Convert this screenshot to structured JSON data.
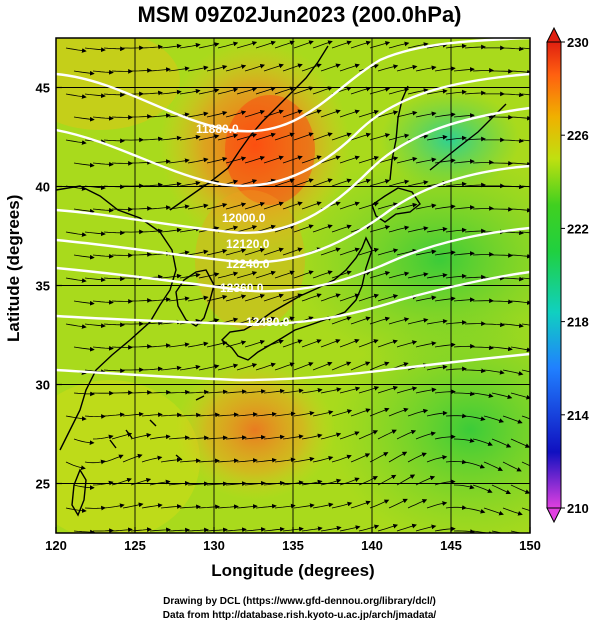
{
  "title": "MSM 09Z02Jun2023 (200.0hPa)",
  "xlabel": "Longitude (degrees)",
  "ylabel": "Latitude  (degrees)",
  "footer": {
    "line1": "Drawing by DCL (https://www.gfd-dennou.org/library/dcl/)",
    "line2": "Data from http://database.rish.kyoto-u.ac.jp/arch/jmadata/"
  },
  "x_ticks": [
    "120",
    "125",
    "130",
    "135",
    "140",
    "145",
    "150"
  ],
  "y_ticks": [
    "25",
    "30",
    "35",
    "40",
    "45"
  ],
  "colorbar": {
    "ticks": [
      "230",
      "226",
      "222",
      "218",
      "214",
      "210"
    ],
    "min": 210,
    "max": 230,
    "colors": [
      "#e040e0",
      "#1010c0",
      "#2080ff",
      "#10d0c0",
      "#20d040",
      "#40d020",
      "#c0e010",
      "#f0b000",
      "#ff6010",
      "#e02010"
    ]
  },
  "contour_labels": [
    "11880.0",
    "12000.0",
    "12120.0",
    "12240.0",
    "12360.0",
    "12480.0"
  ],
  "chart_data": {
    "type": "map",
    "xlim": [
      120,
      150
    ],
    "ylim": [
      22.5,
      47.5
    ],
    "field": "temperature (colour) with geopotential height contours and streamlines",
    "colorbar_range": [
      210,
      230
    ],
    "contours": [
      {
        "label": "11880.0",
        "value": 11880
      },
      {
        "label": "12000.0",
        "value": 12000
      },
      {
        "label": "12120.0",
        "value": 12120
      },
      {
        "label": "12240.0",
        "value": 12240
      },
      {
        "label": "12360.0",
        "value": 12360
      },
      {
        "label": "12480.0",
        "value": 12480
      }
    ]
  }
}
